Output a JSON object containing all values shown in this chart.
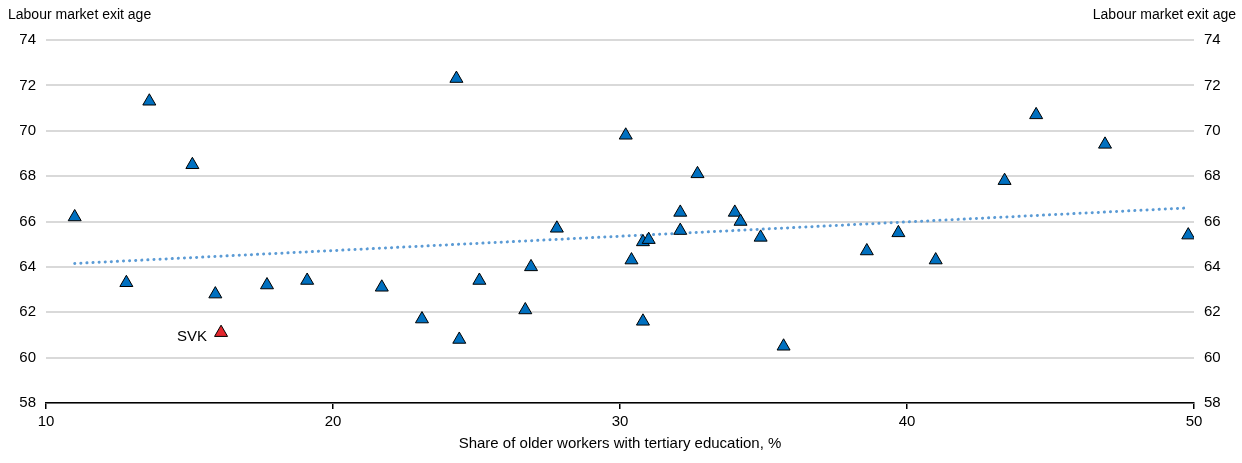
{
  "chart_data": {
    "type": "scatter",
    "xlabel": "Share of older workers with tertiary education, %",
    "ylabel": "Labour market exit age",
    "y2label": "Labour market exit age",
    "xlim": [
      10,
      50
    ],
    "xticks": [
      10,
      20,
      30,
      40,
      50
    ],
    "ylim": [
      58,
      74
    ],
    "yticks": [
      58,
      60,
      62,
      64,
      66,
      68,
      70,
      72,
      74
    ],
    "y2lim": [
      58,
      74
    ],
    "y2ticks": [
      58,
      60,
      62,
      64,
      66,
      68,
      70,
      72,
      74
    ],
    "grid": "y",
    "legend": false,
    "marker": "triangle",
    "series": [
      {
        "color": "#0070c0",
        "x": [
          11.0,
          12.8,
          13.6,
          15.1,
          15.9,
          17.7,
          19.1,
          21.7,
          23.1,
          24.3,
          24.4,
          25.1,
          26.7,
          26.9,
          27.8,
          30.2,
          30.4,
          30.8,
          31.0,
          30.8,
          32.1,
          32.1,
          32.7,
          34.0,
          34.2,
          34.9,
          35.7,
          38.6,
          39.7,
          41.0,
          43.4,
          44.5,
          46.9,
          49.8
        ],
        "values": [
          66.2,
          63.3,
          71.3,
          68.5,
          62.8,
          63.2,
          63.4,
          63.1,
          61.7,
          72.3,
          60.8,
          63.4,
          62.1,
          64.0,
          65.7,
          69.8,
          64.3,
          65.1,
          65.2,
          61.6,
          66.4,
          65.6,
          68.1,
          66.4,
          66.0,
          65.3,
          60.5,
          64.7,
          65.5,
          64.3,
          67.8,
          70.7,
          69.4,
          65.4
        ]
      },
      {
        "name": "SVK",
        "color": "#e3262d",
        "x": [
          16.1
        ],
        "values": [
          61.1
        ]
      },
      {
        "type": "line",
        "color": "#5b9bd5",
        "line_style": "dotted",
        "marker": "none",
        "x": [
          11.0,
          49.8
        ],
        "values": [
          64.15,
          66.6
        ]
      }
    ]
  }
}
